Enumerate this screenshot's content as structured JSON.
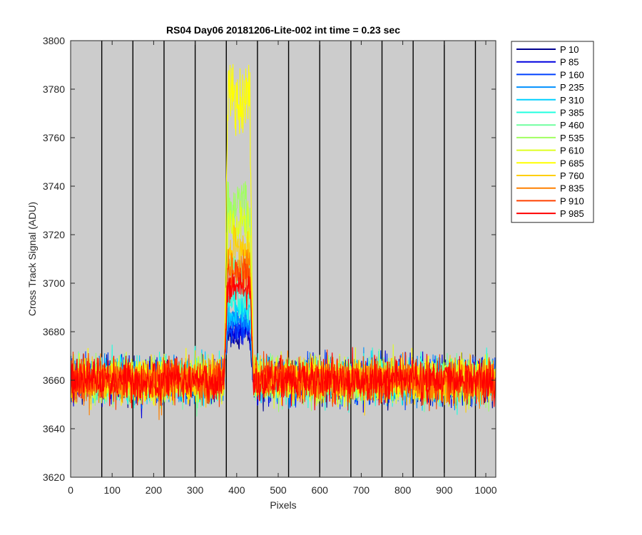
{
  "chart_data": {
    "type": "line",
    "title": "RS04 Day06 20181206-Lite-002 int time = 0.23 sec",
    "xlabel": "Pixels",
    "ylabel": "Cross Track Signal (ADU)",
    "xlim": [
      0,
      1024
    ],
    "ylim": [
      3620,
      3800
    ],
    "xticks": [
      0,
      100,
      200,
      300,
      400,
      500,
      600,
      700,
      800,
      900,
      1000
    ],
    "yticks": [
      3620,
      3640,
      3660,
      3680,
      3700,
      3720,
      3740,
      3760,
      3780,
      3800
    ],
    "background_color": "#cccccc",
    "vertical_lines_x": [
      75,
      150,
      225,
      300,
      375,
      450,
      525,
      600,
      675,
      750,
      825,
      900,
      975
    ],
    "legend_position": "outside-right-top",
    "baseline_mean": 3660,
    "noise_range": [
      3632,
      3693
    ],
    "peak_region_x": [
      370,
      440
    ],
    "series": [
      {
        "name": "P 10",
        "color": "#00008f",
        "peak": 3681
      },
      {
        "name": "P 85",
        "color": "#0000df",
        "peak": 3683
      },
      {
        "name": "P 160",
        "color": "#0040ff",
        "peak": 3686
      },
      {
        "name": "P 235",
        "color": "#0090ff",
        "peak": 3688
      },
      {
        "name": "P 310",
        "color": "#00d0ff",
        "peak": 3692
      },
      {
        "name": "P 385",
        "color": "#20ffdf",
        "peak": 3696
      },
      {
        "name": "P 460",
        "color": "#70ffa0",
        "peak": 3712
      },
      {
        "name": "P 535",
        "color": "#a0ff60",
        "peak": 3740
      },
      {
        "name": "P 610",
        "color": "#dfff20",
        "peak": 3732
      },
      {
        "name": "P 685",
        "color": "#ffff00",
        "peak": 3790
      },
      {
        "name": "P 760",
        "color": "#ffcf00",
        "peak": 3722
      },
      {
        "name": "P 835",
        "color": "#ff8000",
        "peak": 3712
      },
      {
        "name": "P 910",
        "color": "#ff4000",
        "peak": 3708
      },
      {
        "name": "P 985",
        "color": "#ff0000",
        "peak": 3702
      }
    ]
  }
}
